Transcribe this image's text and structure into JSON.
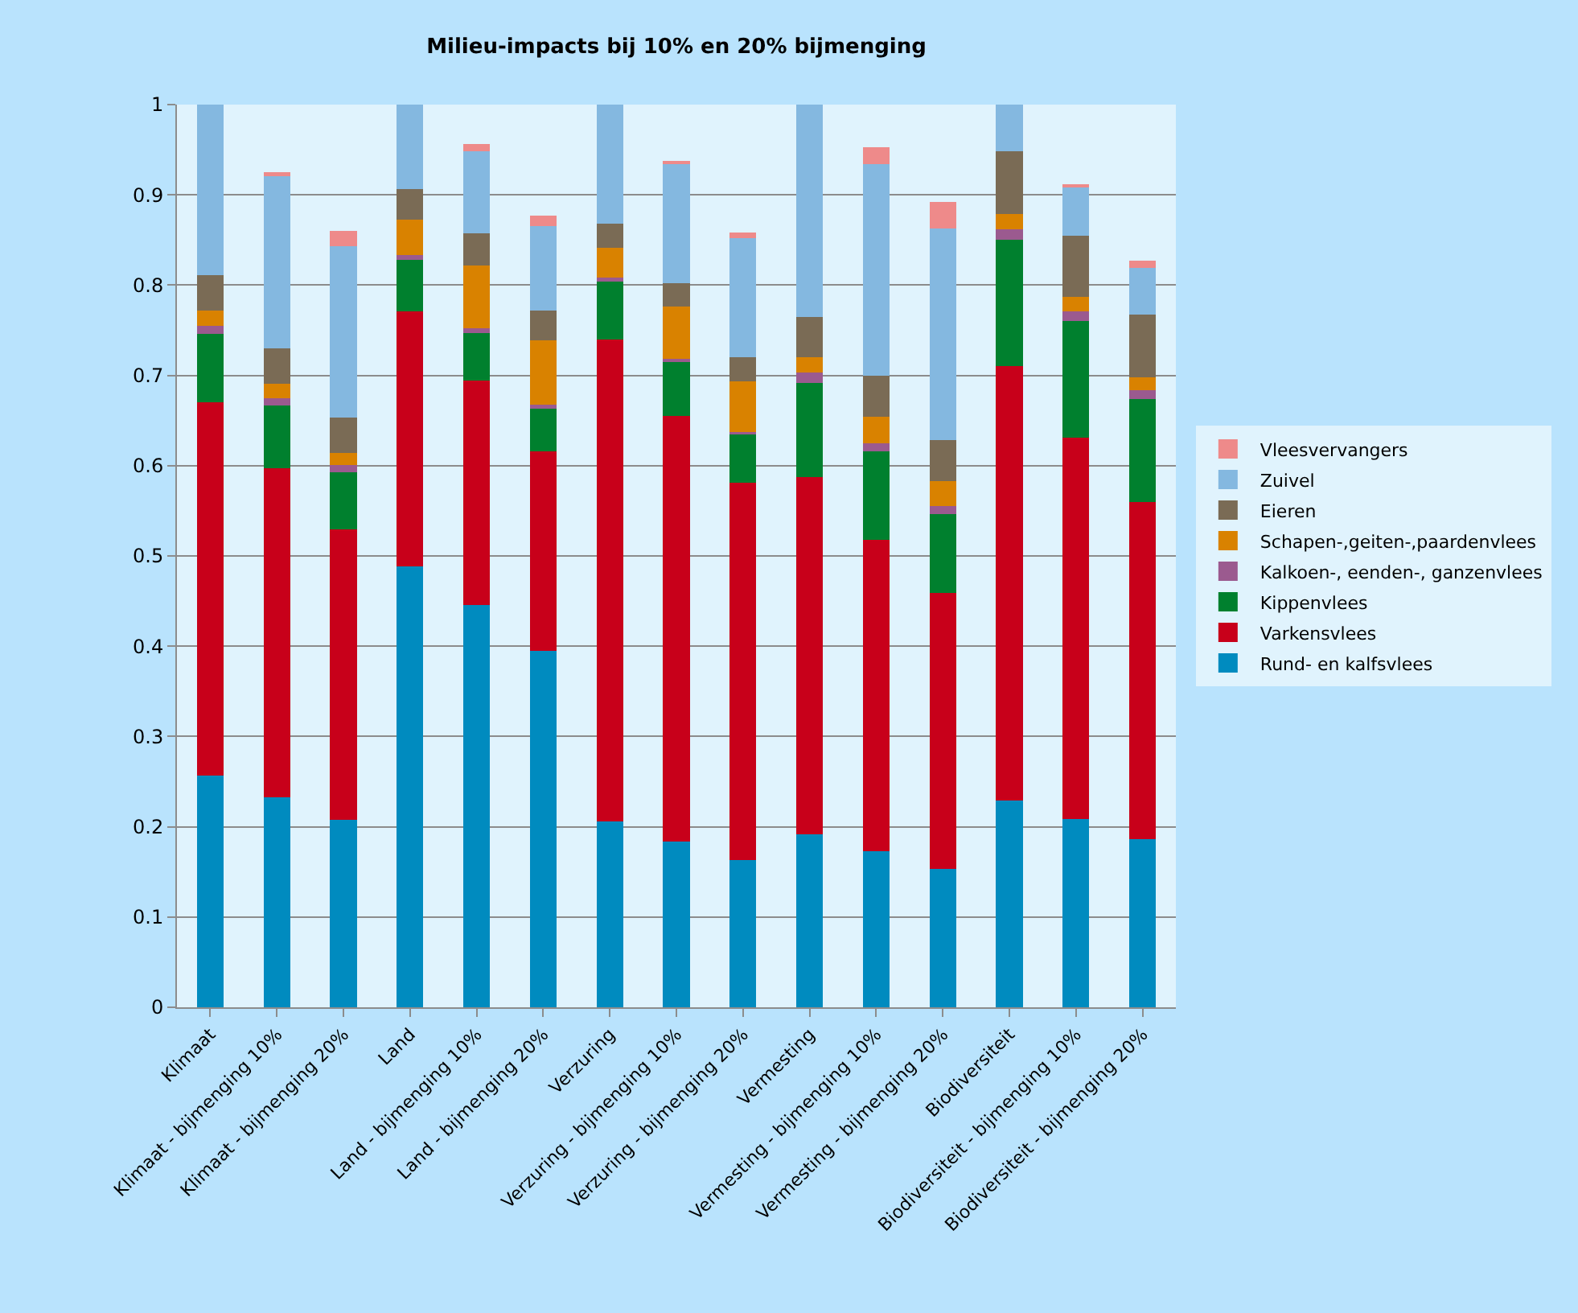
{
  "chart_data": {
    "type": "bar",
    "title": "Milieu-impacts bij 10% en 20% bijmenging",
    "stacked": true,
    "grid": "y",
    "legend": "right",
    "categories": [
      "Klimaat",
      "Klimaat - bijmenging 10%",
      "Klimaat - bijmenging 20%",
      "Land",
      "Land - bijmenging 10%",
      "Land - bijmenging 20%",
      "Verzuring",
      "Verzuring - bijmenging 10%",
      "Verzuring - bijmenging 20%",
      "Vermesting",
      "Vermesting - bijmenging 10%",
      "Vermesting - bijmenging 20%",
      "Biodiversiteit",
      "Biodiversiteit - bijmenging 10%",
      "Biodiversiteit - bijmenging 20%"
    ],
    "ylim": [
      0,
      1
    ],
    "yticks": [
      0,
      {
        "value": 0.1,
        "label": "0.1"
      },
      {
        "value": 0.2,
        "label": "0.2"
      },
      {
        "value": 0.3,
        "label": "0.3"
      },
      {
        "value": 0.4,
        "label": "0.4"
      },
      {
        "value": 0.5,
        "label": "0.5"
      },
      {
        "value": 0.6,
        "label": "0.6"
      },
      {
        "value": 0.7,
        "label": "0.7"
      },
      {
        "value": 0.8,
        "label": "0.8"
      },
      {
        "value": 0.9,
        "label": "0.9"
      },
      1
    ],
    "series": [
      {
        "name": "Rund- en kalfsvlees",
        "color": "#008bbf",
        "values": [
          0.257,
          0.233,
          0.208,
          0.488,
          0.446,
          0.395,
          0.206,
          0.184,
          0.163,
          0.192,
          0.173,
          0.153,
          0.229,
          0.209,
          0.186
        ]
      },
      {
        "name": "Varkensvlees",
        "color": "#c8001a",
        "values": [
          0.413,
          0.364,
          0.321,
          0.283,
          0.248,
          0.221,
          0.534,
          0.471,
          0.418,
          0.395,
          0.345,
          0.306,
          0.481,
          0.422,
          0.374
        ]
      },
      {
        "name": "Kippenvlees",
        "color": "#00802e",
        "values": [
          0.076,
          0.07,
          0.064,
          0.057,
          0.053,
          0.047,
          0.065,
          0.06,
          0.054,
          0.105,
          0.098,
          0.087,
          0.14,
          0.129,
          0.114
        ]
      },
      {
        "name": "Kalkoen-, eenden-, ganzenvlees",
        "color": "#9b5a8f",
        "values": [
          0.009,
          0.008,
          0.008,
          0.005,
          0.005,
          0.005,
          0.003,
          0.003,
          0.002,
          0.011,
          0.009,
          0.009,
          0.012,
          0.011,
          0.01
        ]
      },
      {
        "name": "Schapen-,geiten-,paardenvlees",
        "color": "#d98200",
        "values": [
          0.017,
          0.016,
          0.013,
          0.04,
          0.07,
          0.071,
          0.033,
          0.058,
          0.056,
          0.017,
          0.029,
          0.028,
          0.017,
          0.016,
          0.014
        ]
      },
      {
        "name": "Eieren",
        "color": "#7a6b55",
        "values": [
          0.039,
          0.039,
          0.039,
          0.033,
          0.035,
          0.033,
          0.027,
          0.026,
          0.027,
          0.045,
          0.046,
          0.045,
          0.069,
          0.068,
          0.069
        ]
      },
      {
        "name": "Zuivel",
        "color": "#84b8e0",
        "values": [
          0.189,
          0.191,
          0.19,
          0.094,
          0.091,
          0.093,
          0.132,
          0.132,
          0.132,
          0.235,
          0.234,
          0.235,
          0.052,
          0.053,
          0.052
        ]
      },
      {
        "name": "Vleesvervangers",
        "color": "#ee8a8a",
        "values": [
          0,
          0.004,
          0.017,
          0,
          0.008,
          0.012,
          0,
          0.004,
          0.006,
          0,
          0.019,
          0.029,
          0,
          0.004,
          0.008
        ]
      }
    ]
  }
}
